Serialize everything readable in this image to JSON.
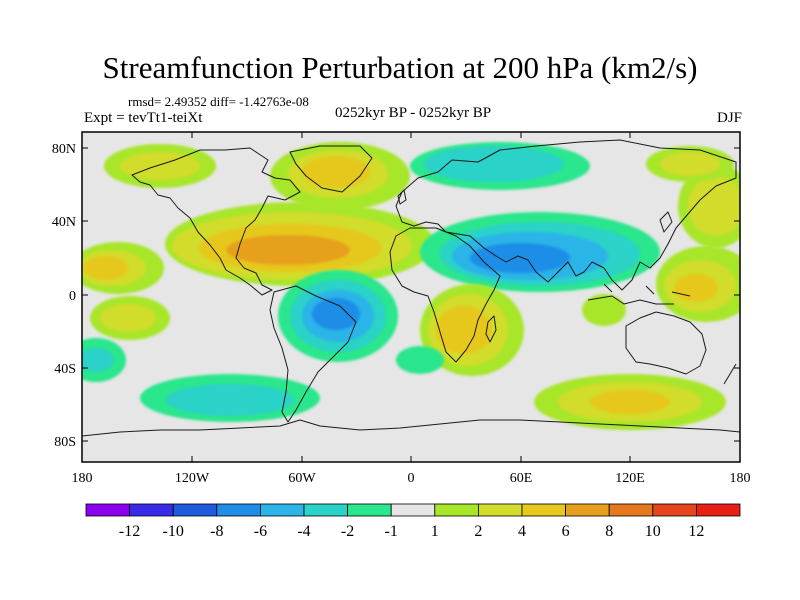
{
  "title": "Streamfunction Perturbation at 200 hPa (km2/s)",
  "stats": "rmsd= 2.49352 diff= -1.42763e-08",
  "expt": "Expt = tevTt1-teiXt",
  "period": "0252kyr BP - 0252kyr BP",
  "season": "DJF",
  "lat_labels": [
    "80N",
    "40N",
    "0",
    "40S",
    "80S"
  ],
  "lon_labels": [
    "180",
    "120W",
    "60W",
    "0",
    "60E",
    "120E",
    "180"
  ],
  "colorbar": {
    "labels": [
      "-12",
      "-10",
      "-8",
      "-6",
      "-4",
      "-2",
      "-1",
      "1",
      "2",
      "4",
      "6",
      "8",
      "10",
      "12"
    ],
    "colors": [
      "#8c00f0",
      "#3a2ce6",
      "#1e5adc",
      "#1e8ee8",
      "#2ab4e8",
      "#2ad2c8",
      "#2ae68c",
      "#e6e6e6",
      "#a8e62a",
      "#d2dc2a",
      "#e6c81e",
      "#e6a01e",
      "#e6781e",
      "#e6461e",
      "#e62014"
    ]
  },
  "palette": {
    "neutral": "#e6e6e6",
    "frame": "#000000",
    "coast": "#1a1a1a"
  }
}
